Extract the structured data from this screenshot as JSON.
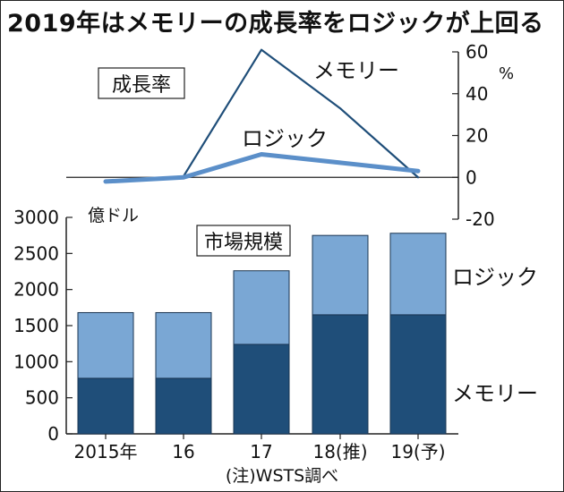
{
  "title": "2019年はメモリーの成長率をロジックが上回る",
  "chart_data": [
    {
      "type": "line",
      "label": "成長率",
      "unit": "%",
      "x": [
        "2015年",
        "16",
        "17",
        "18(推)",
        "19(予)"
      ],
      "ylim": [
        -20,
        60
      ],
      "y_ticks": [
        "60",
        "40",
        "20",
        "0",
        "-20"
      ],
      "y_tick_values": [
        60,
        40,
        20,
        0,
        -20
      ],
      "series": [
        {
          "name": "メモリー",
          "values": [
            -2,
            0.5,
            61,
            33,
            0
          ],
          "color": "#1f4e79"
        },
        {
          "name": "ロジック",
          "values": [
            -2,
            0,
            11,
            7,
            3
          ],
          "color": "#5b8fc9"
        }
      ]
    },
    {
      "type": "bar",
      "label": "市場規模",
      "unit": "億ドル",
      "stacked": true,
      "categories": [
        "2015年",
        "16",
        "17",
        "18(推)",
        "19(予)"
      ],
      "ylim": [
        0,
        3000
      ],
      "y_ticks": [
        "3000",
        "2500",
        "2000",
        "1500",
        "1000",
        "500",
        "0"
      ],
      "y_tick_values": [
        3000,
        2500,
        2000,
        1500,
        1000,
        500,
        0
      ],
      "series": [
        {
          "name": "メモリー",
          "values": [
            770,
            770,
            1240,
            1650,
            1650
          ],
          "color": "#1f4e79"
        },
        {
          "name": "ロジック",
          "values": [
            910,
            910,
            1020,
            1100,
            1130
          ],
          "color": "#7aa7d4"
        }
      ]
    }
  ],
  "note": "(注)WSTS調べ"
}
